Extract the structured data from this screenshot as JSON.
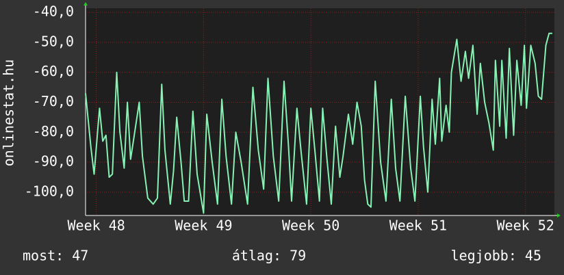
{
  "chart_data": {
    "type": "line",
    "ylabel": "onlinestat.hu",
    "x": [
      47.9,
      47.95,
      47.98,
      48.03,
      48.06,
      48.09,
      48.12,
      48.15,
      48.19,
      48.22,
      48.26,
      48.29,
      48.32,
      48.35,
      48.4,
      48.43,
      48.48,
      48.53,
      48.57,
      48.61,
      48.64,
      48.69,
      48.72,
      48.75,
      48.79,
      48.82,
      48.86,
      48.9,
      48.94,
      49.0,
      49.03,
      49.08,
      49.13,
      49.17,
      49.21,
      49.26,
      49.3,
      49.35,
      49.41,
      49.46,
      49.51,
      49.56,
      49.6,
      49.65,
      49.7,
      49.75,
      49.79,
      49.82,
      49.87,
      49.91,
      49.96,
      50.0,
      50.04,
      50.08,
      50.11,
      50.15,
      50.19,
      50.23,
      50.27,
      50.3,
      50.35,
      50.39,
      50.43,
      50.47,
      50.5,
      50.53,
      50.56,
      50.6,
      50.65,
      50.7,
      50.75,
      50.79,
      50.83,
      50.88,
      50.93,
      50.97,
      51.02,
      51.05,
      51.09,
      51.13,
      51.16,
      51.2,
      51.22,
      51.26,
      51.29,
      51.31,
      51.36,
      51.4,
      51.44,
      51.47,
      51.51,
      51.55,
      51.58,
      51.62,
      51.66,
      51.7,
      51.72,
      51.76,
      51.78,
      51.82,
      51.85,
      51.89,
      51.92,
      51.96,
      51.99,
      52.01,
      52.05,
      52.09,
      52.12,
      52.15,
      52.19,
      52.22,
      52.25
    ],
    "series": [
      {
        "color": "#86f2b4",
        "values": [
          -67,
          -85,
          -94,
          -72,
          -83,
          -81,
          -95,
          -94,
          -60,
          -80,
          -92,
          -70,
          -89,
          -82,
          -70,
          -88,
          -102,
          -104,
          -102,
          -64,
          -86,
          -104,
          -93,
          -75,
          -90,
          -103,
          -103,
          -73,
          -94,
          -107,
          -74,
          -90,
          -104,
          -69,
          -88,
          -104,
          -80,
          -90,
          -104,
          -65,
          -86,
          -99,
          -62,
          -88,
          -103,
          -63,
          -84,
          -103,
          -72,
          -87,
          -104,
          -72,
          -87,
          -103,
          -72,
          -89,
          -104,
          -78,
          -95,
          -88,
          -74,
          -84,
          -70,
          -78,
          -96,
          -104,
          -105,
          -63,
          -90,
          -103,
          -69,
          -92,
          -103,
          -68,
          -92,
          -103,
          -68,
          -85,
          -100,
          -69,
          -84,
          -62,
          -83,
          -71,
          -80,
          -60,
          -49,
          -63,
          -53,
          -62,
          -51,
          -74,
          -57,
          -70,
          -77,
          -86,
          -56,
          -78,
          -56,
          -82,
          -52,
          -81,
          -56,
          -71,
          -51,
          -72,
          -51,
          -57,
          -68,
          -69,
          -51,
          -47,
          -47
        ]
      }
    ],
    "xlim": [
      47.9,
      52.27
    ],
    "ylim": [
      -107.8,
      -38.6
    ],
    "xticks": [
      {
        "value": 48,
        "label": "Week 48"
      },
      {
        "value": 49,
        "label": "Week 49"
      },
      {
        "value": 50,
        "label": "Week 50"
      },
      {
        "value": 51,
        "label": "Week 51"
      },
      {
        "value": 52,
        "label": "Week 52"
      }
    ],
    "yticks": [
      {
        "value": -100,
        "label": "-100,0"
      },
      {
        "value": -90,
        "label": "-90,0"
      },
      {
        "value": -80,
        "label": "-80,0"
      },
      {
        "value": -70,
        "label": "-70,0"
      },
      {
        "value": -60,
        "label": "-60,0"
      },
      {
        "value": -50,
        "label": "-50,0"
      },
      {
        "value": -40,
        "label": "-40,0"
      }
    ],
    "grid": true,
    "footer": [
      "most: 47",
      "átlag: 79",
      "legjobb: 45"
    ]
  }
}
